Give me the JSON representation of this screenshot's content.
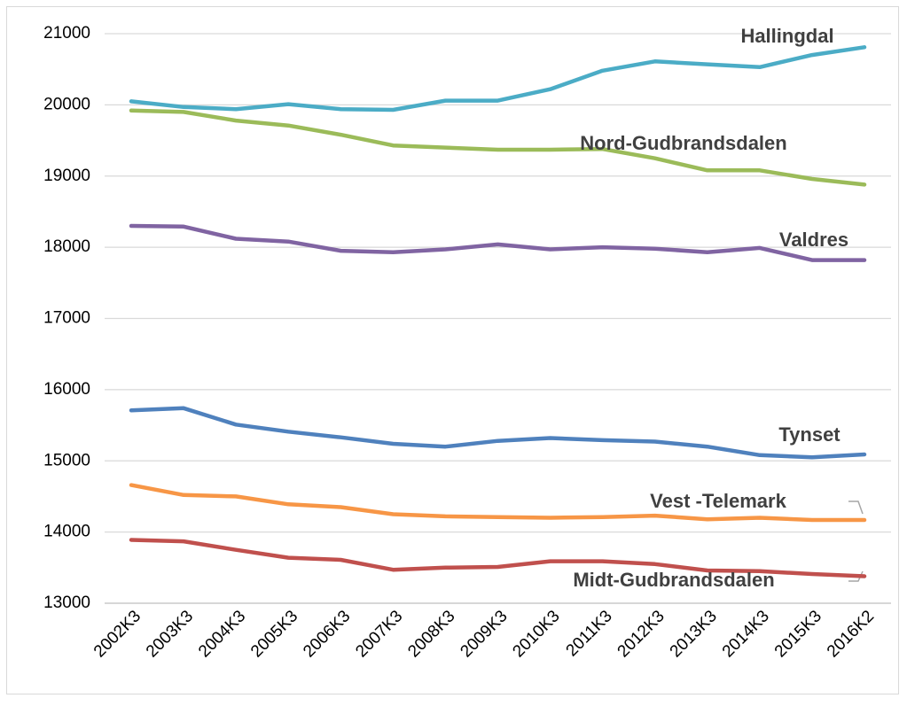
{
  "chart_data": {
    "type": "line",
    "categories": [
      "2002K3",
      "2003K3",
      "2004K3",
      "2005K3",
      "2006K3",
      "2007K3",
      "2008K3",
      "2009K3",
      "2010K3",
      "2011K3",
      "2012K3",
      "2013K3",
      "2014K3",
      "2015K3",
      "2016K2"
    ],
    "series": [
      {
        "name": "Hallingdal",
        "color": "#4bacc6",
        "values": [
          20050,
          19970,
          19940,
          20010,
          19940,
          19930,
          20060,
          20060,
          20220,
          20480,
          20610,
          20570,
          20530,
          20700,
          20810
        ]
      },
      {
        "name": "Nord-Gudbrandsdalen",
        "color": "#9bbb59",
        "values": [
          19920,
          19900,
          19780,
          19710,
          19580,
          19430,
          19400,
          19370,
          19370,
          19380,
          19250,
          19080,
          19080,
          18960,
          18880
        ]
      },
      {
        "name": "Valdres",
        "color": "#8064a2",
        "values": [
          18300,
          18290,
          18120,
          18080,
          17950,
          17930,
          17970,
          18040,
          17970,
          18000,
          17980,
          17930,
          17990,
          17820,
          17820
        ]
      },
      {
        "name": "Tynset",
        "color": "#4f81bd",
        "values": [
          15710,
          15740,
          15510,
          15410,
          15330,
          15240,
          15200,
          15280,
          15320,
          15290,
          15270,
          15200,
          15080,
          15050,
          15090
        ]
      },
      {
        "name": "Vest -Telemark",
        "color": "#f79646",
        "values": [
          14660,
          14520,
          14500,
          14390,
          14350,
          14250,
          14220,
          14210,
          14200,
          14210,
          14230,
          14180,
          14200,
          14170,
          14170
        ]
      },
      {
        "name": "Midt-Gudbrandsdalen",
        "color": "#c0504d",
        "values": [
          13890,
          13870,
          13750,
          13640,
          13610,
          13470,
          13500,
          13510,
          13590,
          13590,
          13550,
          13460,
          13450,
          13410,
          13380
        ]
      }
    ],
    "ylim": [
      13000,
      21000
    ],
    "yticks": [
      13000,
      14000,
      15000,
      16000,
      17000,
      18000,
      19000,
      20000,
      21000
    ],
    "grid": true
  }
}
